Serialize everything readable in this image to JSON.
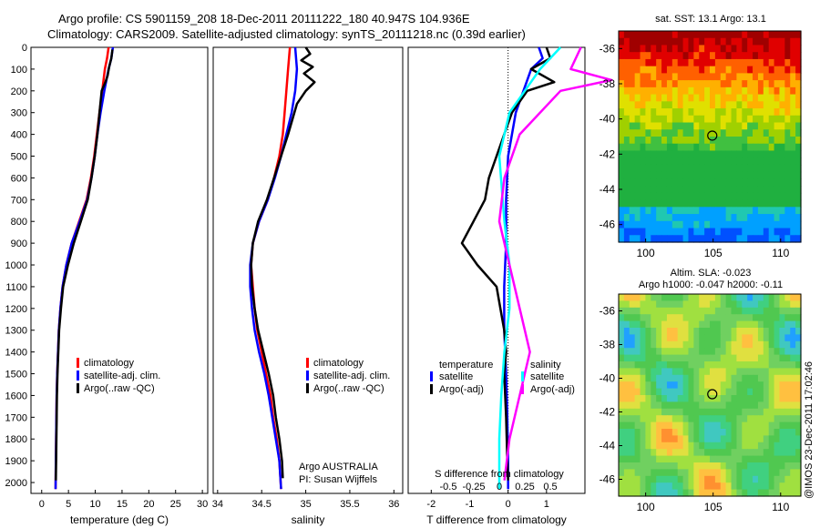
{
  "header": {
    "line1": "Argo profile: CS 5901159_208 18-Dec-2011 20111222_180 40.947S 104.936E",
    "line2": "Climatology: CARS2009. Satellite-adjusted climatology: synTS_20111218.nc (0.39d earlier)"
  },
  "footer_text": "@IMOS 23-Dec-2011 17:02:46",
  "colors": {
    "climatology": "#ff0000",
    "satellite": "#0000ff",
    "argo": "#000000",
    "sat_salinity": "#00ffff",
    "argo_salinity": "#ff00ff"
  },
  "chart_data": [
    {
      "type": "line",
      "panel": "temperature",
      "xlabel": "temperature (deg C)",
      "ylabel": "",
      "xlim": [
        -2,
        31
      ],
      "ylim": [
        2050,
        0
      ],
      "xticks": [
        0,
        5,
        10,
        15,
        20,
        25,
        30
      ],
      "yticks": [
        0,
        100,
        200,
        300,
        400,
        500,
        600,
        700,
        800,
        900,
        1000,
        1100,
        1200,
        1300,
        1400,
        1500,
        1600,
        1700,
        1800,
        1900,
        2000
      ],
      "legend": [
        "climatology",
        "satellite-adj. clim.",
        "Argo(..raw -QC)"
      ],
      "legend_position": "lower-middle",
      "series": [
        {
          "name": "climatology",
          "color": "#ff0000",
          "points": [
            [
              12.5,
              0
            ],
            [
              12.2,
              50
            ],
            [
              11.8,
              100
            ],
            [
              11.3,
              200
            ],
            [
              10.8,
              300
            ],
            [
              10.3,
              400
            ],
            [
              9.8,
              500
            ],
            [
              9.2,
              600
            ],
            [
              8.4,
              700
            ],
            [
              7.0,
              800
            ],
            [
              5.6,
              900
            ],
            [
              4.6,
              1000
            ],
            [
              3.9,
              1100
            ],
            [
              3.5,
              1200
            ],
            [
              3.2,
              1300
            ],
            [
              3.05,
              1400
            ],
            [
              2.9,
              1500
            ],
            [
              2.8,
              1600
            ],
            [
              2.75,
              1700
            ],
            [
              2.7,
              1800
            ],
            [
              2.65,
              1900
            ],
            [
              2.6,
              2030
            ]
          ]
        },
        {
          "name": "satellite-adj. clim.",
          "color": "#0000ff",
          "points": [
            [
              13.3,
              0
            ],
            [
              13.0,
              50
            ],
            [
              12.5,
              100
            ],
            [
              11.7,
              200
            ],
            [
              11.0,
              300
            ],
            [
              10.4,
              400
            ],
            [
              9.9,
              500
            ],
            [
              9.3,
              600
            ],
            [
              8.5,
              700
            ],
            [
              7.1,
              800
            ],
            [
              5.6,
              900
            ],
            [
              4.6,
              1000
            ],
            [
              3.9,
              1100
            ],
            [
              3.5,
              1200
            ],
            [
              3.2,
              1300
            ],
            [
              3.05,
              1400
            ],
            [
              2.9,
              1500
            ],
            [
              2.8,
              1600
            ],
            [
              2.75,
              1700
            ],
            [
              2.7,
              1800
            ],
            [
              2.65,
              1900
            ],
            [
              2.6,
              2030
            ]
          ]
        },
        {
          "name": "Argo(..raw -QC)",
          "color": "#000000",
          "points": [
            [
              13.2,
              10
            ],
            [
              13.0,
              50
            ],
            [
              12.6,
              90
            ],
            [
              12.3,
              130
            ],
            [
              11.9,
              160
            ],
            [
              11.2,
              200
            ],
            [
              10.8,
              300
            ],
            [
              10.4,
              400
            ],
            [
              9.9,
              500
            ],
            [
              9.3,
              600
            ],
            [
              8.6,
              700
            ],
            [
              7.3,
              800
            ],
            [
              6.0,
              900
            ],
            [
              4.9,
              1000
            ],
            [
              4.0,
              1100
            ],
            [
              3.6,
              1200
            ],
            [
              3.25,
              1300
            ],
            [
              3.1,
              1400
            ],
            [
              2.95,
              1500
            ],
            [
              2.85,
              1600
            ],
            [
              2.8,
              1700
            ],
            [
              2.75,
              1800
            ],
            [
              2.7,
              1900
            ],
            [
              2.65,
              1990
            ]
          ]
        }
      ]
    },
    {
      "type": "line",
      "panel": "salinity",
      "xlabel": "salinity",
      "xlim": [
        33.95,
        36.1
      ],
      "ylim": [
        2050,
        0
      ],
      "xticks": [
        34,
        34.5,
        35,
        35.5,
        36
      ],
      "legend": [
        "climatology",
        "satellite-adj. clim.",
        "Argo(..raw -QC)"
      ],
      "legend_position": "lower-right",
      "annotation": [
        "Argo AUSTRALIA",
        "PI: Susan Wijffels"
      ],
      "series": [
        {
          "name": "climatology",
          "color": "#ff0000",
          "points": [
            [
              34.82,
              0
            ],
            [
              34.8,
              100
            ],
            [
              34.78,
              200
            ],
            [
              34.76,
              300
            ],
            [
              34.74,
              400
            ],
            [
              34.7,
              500
            ],
            [
              34.64,
              600
            ],
            [
              34.57,
              700
            ],
            [
              34.47,
              800
            ],
            [
              34.4,
              900
            ],
            [
              34.38,
              1000
            ],
            [
              34.4,
              1100
            ],
            [
              34.42,
              1200
            ],
            [
              34.45,
              1300
            ],
            [
              34.5,
              1400
            ],
            [
              34.55,
              1500
            ],
            [
              34.6,
              1600
            ],
            [
              34.63,
              1700
            ],
            [
              34.67,
              1800
            ],
            [
              34.7,
              1900
            ],
            [
              34.72,
              2030
            ]
          ]
        },
        {
          "name": "satellite-adj. clim.",
          "color": "#0000ff",
          "points": [
            [
              34.88,
              0
            ],
            [
              34.9,
              100
            ],
            [
              34.88,
              200
            ],
            [
              34.84,
              300
            ],
            [
              34.78,
              400
            ],
            [
              34.72,
              500
            ],
            [
              34.65,
              600
            ],
            [
              34.57,
              700
            ],
            [
              34.47,
              800
            ],
            [
              34.4,
              900
            ],
            [
              34.37,
              1000
            ],
            [
              34.37,
              1100
            ],
            [
              34.39,
              1200
            ],
            [
              34.42,
              1300
            ],
            [
              34.47,
              1400
            ],
            [
              34.53,
              1500
            ],
            [
              34.58,
              1600
            ],
            [
              34.62,
              1700
            ],
            [
              34.66,
              1800
            ],
            [
              34.7,
              1900
            ],
            [
              34.72,
              2030
            ]
          ]
        },
        {
          "name": "Argo(..raw -QC)",
          "color": "#000000",
          "points": [
            [
              35.0,
              0
            ],
            [
              35.05,
              30
            ],
            [
              34.95,
              60
            ],
            [
              35.08,
              90
            ],
            [
              34.98,
              120
            ],
            [
              35.1,
              160
            ],
            [
              35.0,
              200
            ],
            [
              34.9,
              260
            ],
            [
              34.8,
              400
            ],
            [
              34.72,
              500
            ],
            [
              34.64,
              600
            ],
            [
              34.56,
              700
            ],
            [
              34.46,
              800
            ],
            [
              34.4,
              900
            ],
            [
              34.38,
              1000
            ],
            [
              34.39,
              1100
            ],
            [
              34.42,
              1200
            ],
            [
              34.46,
              1300
            ],
            [
              34.52,
              1400
            ],
            [
              34.58,
              1500
            ],
            [
              34.63,
              1600
            ],
            [
              34.66,
              1700
            ],
            [
              34.7,
              1800
            ],
            [
              34.73,
              1900
            ],
            [
              34.74,
              1980
            ]
          ]
        }
      ]
    },
    {
      "type": "line",
      "panel": "difference",
      "xlabel": "T difference from climatology",
      "top_label": "S difference from climatology",
      "xlim": [
        -2.6,
        2.0
      ],
      "ylim": [
        2050,
        0
      ],
      "xticks": [
        -2,
        -1,
        0,
        1
      ],
      "secondary_xticks": [
        "-0.5",
        "-0.25",
        "0",
        "0.25",
        "0.5"
      ],
      "zero_line": "dotted",
      "legend_groups": [
        {
          "title": "temperature",
          "items": [
            {
              "label": "satellite",
              "color": "#0000ff"
            },
            {
              "label": "Argo(-adj)",
              "color": "#000000"
            }
          ]
        },
        {
          "title": "salinity",
          "items": [
            {
              "label": "satellite",
              "color": "#00ffff"
            },
            {
              "label": "Argo(-adj)",
              "color": "#ff00ff"
            }
          ]
        }
      ],
      "series": [
        {
          "name": "satellite",
          "color": "#0000ff",
          "points": [
            [
              0.8,
              0
            ],
            [
              0.9,
              50
            ],
            [
              0.6,
              100
            ],
            [
              0.4,
              200
            ],
            [
              0.2,
              300
            ],
            [
              0.1,
              400
            ],
            [
              0.0,
              500
            ],
            [
              -0.05,
              700
            ],
            [
              -0.05,
              900
            ],
            [
              -0.1,
              1100
            ],
            [
              -0.1,
              1300
            ],
            [
              -0.05,
              1500
            ],
            [
              -0.02,
              1700
            ],
            [
              0,
              1900
            ],
            [
              0,
              2030
            ]
          ]
        },
        {
          "name": "Argo(-adj)",
          "color": "#000000",
          "points": [
            [
              1.0,
              0
            ],
            [
              1.1,
              50
            ],
            [
              0.6,
              100
            ],
            [
              1.2,
              160
            ],
            [
              0.5,
              200
            ],
            [
              0.1,
              300
            ],
            [
              -0.1,
              400
            ],
            [
              -0.3,
              500
            ],
            [
              -0.5,
              600
            ],
            [
              -0.6,
              700
            ],
            [
              -0.9,
              800
            ],
            [
              -1.2,
              900
            ],
            [
              -0.8,
              1000
            ],
            [
              -0.3,
              1100
            ],
            [
              -0.2,
              1200
            ],
            [
              -0.1,
              1300
            ],
            [
              -0.05,
              1400
            ],
            [
              -0.1,
              1500
            ],
            [
              -0.05,
              1700
            ],
            [
              -0.02,
              1900
            ],
            [
              0,
              1990
            ]
          ]
        },
        {
          "name": "salinity satellite",
          "color": "#00ffff",
          "points": [
            [
              0.6,
              0
            ],
            [
              0.4,
              100
            ],
            [
              0.25,
              200
            ],
            [
              0.1,
              300
            ],
            [
              0.0,
              500
            ],
            [
              0.05,
              800
            ],
            [
              0.1,
              1000
            ],
            [
              0.1,
              1200
            ],
            [
              0.05,
              1400
            ],
            [
              0.02,
              1600
            ],
            [
              0,
              1800
            ],
            [
              0,
              2030
            ]
          ]
        },
        {
          "name": "salinity Argo(-adj)",
          "color": "#ff00ff",
          "points": [
            [
              0.8,
              0
            ],
            [
              0.7,
              100
            ],
            [
              1.1,
              150
            ],
            [
              0.6,
              200
            ],
            [
              0.2,
              400
            ],
            [
              0.05,
              600
            ],
            [
              0,
              800
            ],
            [
              0.1,
              1000
            ],
            [
              0.2,
              1200
            ],
            [
              0.3,
              1400
            ],
            [
              0.2,
              1600
            ],
            [
              0.1,
              1800
            ],
            [
              0.05,
              1990
            ]
          ]
        }
      ]
    },
    {
      "type": "heatmap",
      "panel": "sst_map",
      "title": "sat. SST: 13.1  Argo: 13.1",
      "xlim": [
        98,
        111.5
      ],
      "ylim": [
        -47,
        -35
      ],
      "xticks": [
        100,
        105,
        110
      ],
      "yticks": [
        -36,
        -38,
        -40,
        -42,
        -44,
        -46
      ],
      "marker": {
        "lon": 104.936,
        "lat": -40.947
      }
    },
    {
      "type": "heatmap",
      "panel": "sla_map",
      "title_line1": "Altim. SLA: -0.023",
      "title_line2": "Argo h1000: -0.047  h2000: -0.11",
      "xlim": [
        98,
        111.5
      ],
      "ylim": [
        -47,
        -35
      ],
      "xticks": [
        100,
        105,
        110
      ],
      "yticks": [
        -36,
        -38,
        -40,
        -42,
        -44,
        -46
      ],
      "marker": {
        "lon": 104.936,
        "lat": -40.947
      }
    }
  ]
}
